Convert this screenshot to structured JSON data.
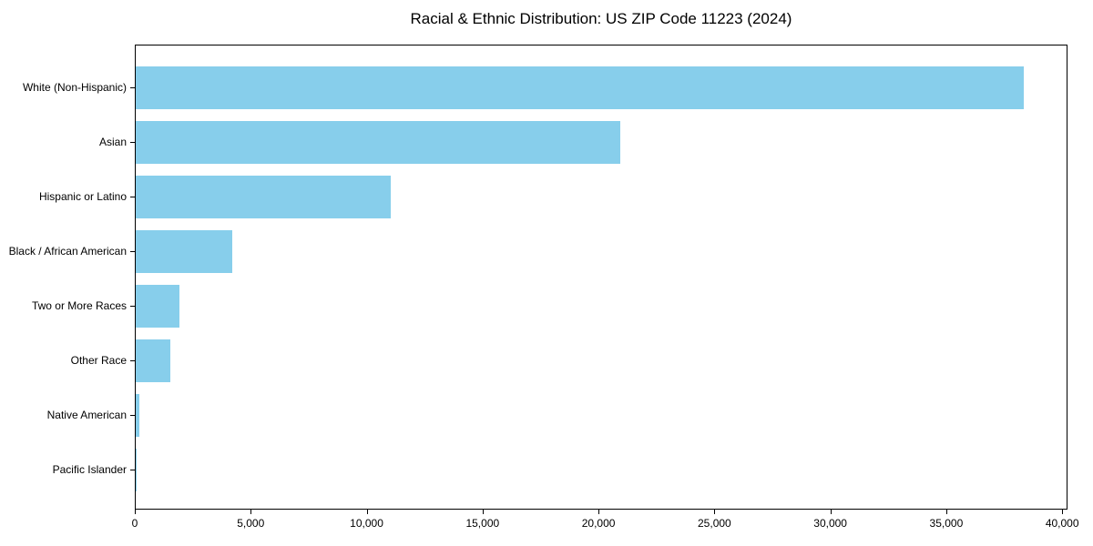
{
  "chart_data": {
    "type": "bar",
    "orientation": "horizontal",
    "title": "Racial & Ethnic Distribution: US ZIP Code 11223 (2024)",
    "categories": [
      "White (Non-Hispanic)",
      "Asian",
      "Hispanic or Latino",
      "Black / African American",
      "Two or More Races",
      "Other Race",
      "Native American",
      "Pacific Islander"
    ],
    "values": [
      38300,
      20900,
      11000,
      4150,
      1900,
      1500,
      170,
      30
    ],
    "xlabel": "",
    "ylabel": "",
    "xlim": [
      0,
      40150
    ],
    "xticks": [
      0,
      5000,
      10000,
      15000,
      20000,
      25000,
      30000,
      35000,
      40000
    ],
    "xtick_labels": [
      "0",
      "5,000",
      "10,000",
      "15,000",
      "20,000",
      "25,000",
      "30,000",
      "35,000",
      "40,000"
    ],
    "bar_color": "#87CEEB",
    "axis_color": "#000000",
    "background_color": "#ffffff",
    "grid": false,
    "legend": false
  }
}
